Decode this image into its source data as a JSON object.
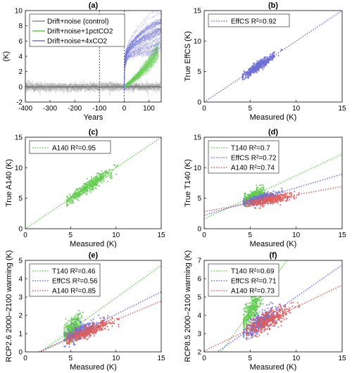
{
  "colors": {
    "green": "#66cc55",
    "blue": "#6f6fd6",
    "red": "#d95f5f",
    "gray": "#8c8c8c"
  },
  "chart_data": [
    {
      "id": "a",
      "type": "line",
      "title": "(a)",
      "xlabel": "Years",
      "ylabel": "(K)",
      "xlim": [
        -400,
        150
      ],
      "ylim": [
        -2,
        10
      ],
      "xticks": [
        -400,
        -300,
        -200,
        -100,
        0,
        100
      ],
      "yticks": [
        -2,
        0,
        2,
        4,
        6,
        8,
        10
      ],
      "vlines": [
        -100,
        0
      ],
      "legend": "top-left",
      "series": [
        {
          "name": "Drift+noise (control)",
          "color": "gray",
          "shape": "control",
          "x": [
            -400,
            150
          ],
          "mean": [
            0,
            0
          ],
          "spread": 0.3
        },
        {
          "name": "Drift+noise+1pctCO2",
          "color": "green",
          "shape": "transient",
          "x": [
            0,
            25,
            50,
            75,
            100,
            125,
            140
          ],
          "mean": [
            0,
            0.6,
            1.3,
            2.1,
            3.0,
            4.1,
            4.9
          ],
          "spread_end": 1.2
        },
        {
          "name": "Drift+noise+4xCO2",
          "color": "blue",
          "shape": "step",
          "x": [
            0,
            1,
            10,
            25,
            50,
            75,
            100,
            125,
            150
          ],
          "mean": [
            0,
            3.0,
            4.3,
            5.0,
            5.7,
            6.2,
            6.6,
            7.0,
            7.3
          ],
          "spread_end": 2.3
        }
      ]
    },
    {
      "id": "b",
      "type": "scatter",
      "title": "(b)",
      "xlabel": "Measured (K)",
      "ylabel": "True EffCS (K)",
      "xlim": [
        0,
        15
      ],
      "ylim": [
        0,
        15
      ],
      "xticks": [
        0,
        5,
        10,
        15
      ],
      "yticks": [
        0,
        5,
        10,
        15
      ],
      "legend": "top-left",
      "series": [
        {
          "name": "EffCS R²=0.92",
          "color": "blue",
          "fit": [
            0,
            1.0
          ],
          "cloud": {
            "xcenter": 5.9,
            "xstd": 0.85,
            "xmin": 4.2,
            "xmax": 8.4,
            "slope": 1.0,
            "intercept": 0,
            "noise": 0.35,
            "n": 450
          }
        }
      ]
    },
    {
      "id": "c",
      "type": "scatter",
      "title": "(c)",
      "xlabel": "Measured (K)",
      "ylabel": "True A140 (K)",
      "xlim": [
        0,
        15
      ],
      "ylim": [
        0,
        15
      ],
      "xticks": [
        0,
        5,
        10,
        15
      ],
      "yticks": [
        0,
        5,
        10,
        15
      ],
      "legend": "top-left",
      "series": [
        {
          "name": "A140 R²=0.95",
          "color": "green",
          "fit": [
            0,
            1.0
          ],
          "cloud": {
            "xcenter": 7.0,
            "xstd": 1.3,
            "xmin": 4.6,
            "xmax": 10.2,
            "slope": 1.0,
            "intercept": 0,
            "noise": 0.45,
            "n": 450
          }
        }
      ]
    },
    {
      "id": "d",
      "type": "scatter",
      "title": "(d)",
      "xlabel": "Measured (K)",
      "ylabel": "True T140 (K)",
      "xlim": [
        0,
        15
      ],
      "ylim": [
        0,
        15
      ],
      "xticks": [
        0,
        5,
        10,
        15
      ],
      "yticks": [
        0,
        5,
        10,
        15
      ],
      "legend": "top-left",
      "series": [
        {
          "name": "T140 R²=0.7",
          "color": "green",
          "fit": [
            1.6,
            0.71
          ],
          "cloud": {
            "xcenter": 5.3,
            "xstd": 0.55,
            "xmin": 4.4,
            "xmax": 7.0,
            "slope": 0.71,
            "intercept": 1.6,
            "noise": 0.45,
            "n": 350
          }
        },
        {
          "name": "EffCS R²=0.72",
          "color": "blue",
          "fit": [
            2.2,
            0.45
          ],
          "cloud": {
            "xcenter": 6.1,
            "xstd": 0.85,
            "xmin": 4.3,
            "xmax": 8.6,
            "slope": 0.45,
            "intercept": 2.2,
            "noise": 0.35,
            "n": 350
          }
        },
        {
          "name": "A140 R²=0.74",
          "color": "red",
          "fit": [
            2.8,
            0.275
          ],
          "cloud": {
            "xcenter": 7.0,
            "xstd": 1.3,
            "xmin": 4.6,
            "xmax": 10.3,
            "slope": 0.275,
            "intercept": 2.8,
            "noise": 0.35,
            "n": 400
          }
        }
      ]
    },
    {
      "id": "e",
      "type": "scatter",
      "title": "(e)",
      "xlabel": "Measured (K)",
      "ylabel": "RCP2.6 2000–2100 warming (K)",
      "xlim": [
        0,
        15
      ],
      "ylim": [
        0,
        5
      ],
      "xticks": [
        0,
        5,
        10,
        15
      ],
      "yticks": [
        0,
        1,
        2,
        3,
        4,
        5
      ],
      "legend": "top-left",
      "series": [
        {
          "name": "T140 R²=0.46",
          "color": "green",
          "fit": [
            -0.6,
            0.355
          ],
          "cloud": {
            "xcenter": 5.2,
            "xstd": 0.5,
            "xmin": 4.3,
            "xmax": 6.8,
            "slope": 0.355,
            "intercept": -0.6,
            "noise": 0.32,
            "n": 350
          }
        },
        {
          "name": "EffCS R²=0.56",
          "color": "blue",
          "fit": [
            -0.4,
            0.245
          ],
          "cloud": {
            "xcenter": 6.1,
            "xstd": 0.85,
            "xmin": 4.3,
            "xmax": 8.7,
            "slope": 0.245,
            "intercept": -0.4,
            "noise": 0.2,
            "n": 350
          }
        },
        {
          "name": "A140 R²=0.85",
          "color": "red",
          "fit": [
            -0.3,
            0.205
          ],
          "cloud": {
            "xcenter": 7.0,
            "xstd": 1.3,
            "xmin": 4.6,
            "xmax": 10.3,
            "slope": 0.205,
            "intercept": -0.3,
            "noise": 0.15,
            "n": 400
          }
        }
      ]
    },
    {
      "id": "f",
      "type": "scatter",
      "title": "(f)",
      "xlabel": "Measured (K)",
      "ylabel": "RCP8.5 2000–2100 warming (K)",
      "xlim": [
        0,
        15
      ],
      "ylim": [
        2,
        7
      ],
      "xticks": [
        0,
        5,
        10,
        15
      ],
      "yticks": [
        2,
        3,
        4,
        5,
        6,
        7
      ],
      "legend": "top-left",
      "series": [
        {
          "name": "T140 R²=0.69",
          "color": "green",
          "fit": [
            0.7,
            0.7
          ],
          "cloud": {
            "xcenter": 5.2,
            "xstd": 0.5,
            "xmin": 4.3,
            "xmax": 6.8,
            "slope": 0.7,
            "intercept": 0.7,
            "noise": 0.32,
            "n": 350
          }
        },
        {
          "name": "EffCS R²=0.71",
          "color": "blue",
          "fit": [
            1.5,
            0.35
          ],
          "cloud": {
            "xcenter": 6.1,
            "xstd": 0.85,
            "xmin": 4.3,
            "xmax": 8.7,
            "slope": 0.35,
            "intercept": 1.5,
            "noise": 0.25,
            "n": 350
          }
        },
        {
          "name": "A140 R²=0.73",
          "color": "red",
          "fit": [
            2.05,
            0.24
          ],
          "cloud": {
            "xcenter": 7.0,
            "xstd": 1.3,
            "xmin": 4.6,
            "xmax": 10.3,
            "slope": 0.24,
            "intercept": 2.05,
            "noise": 0.25,
            "n": 400
          }
        }
      ]
    }
  ]
}
